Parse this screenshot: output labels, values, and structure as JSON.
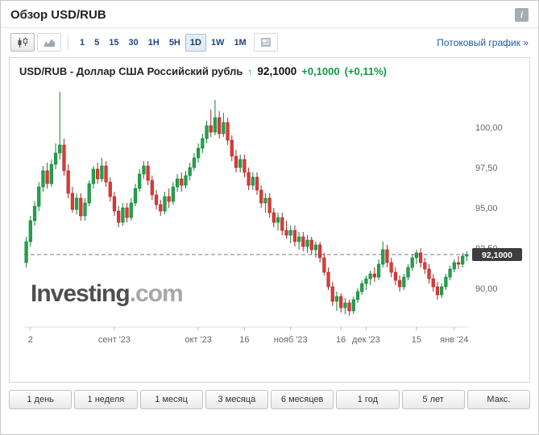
{
  "header": {
    "title": "Обзор USD/RUB",
    "info_icon": "i"
  },
  "toolbar": {
    "chart_types": [
      "candlestick-chart",
      "area-chart"
    ],
    "intervals": [
      "1",
      "5",
      "15",
      "30",
      "1H",
      "5H",
      "1D",
      "1W",
      "1M"
    ],
    "selected_interval": "1D",
    "news_icon": "news",
    "streaming_link": "Потоковый график »"
  },
  "quote": {
    "instrument": "USD/RUB - Доллар США Российский рубль",
    "arrow": "↑",
    "last": "92,1000",
    "change": "+0,1000",
    "change_pct": "(+0,11%)",
    "up_color": "#0e9a43"
  },
  "watermark": {
    "bold": "Investing",
    "light": ".com"
  },
  "ranges": [
    "1 день",
    "1 неделя",
    "1 месяц",
    "3 месяца",
    "6 месяцев",
    "1 год",
    "5 лет",
    "Макс."
  ],
  "chart_data": {
    "type": "candlestick",
    "pair": "USD/RUB",
    "timeframe": "1D",
    "ylim": [
      87.6,
      102.6
    ],
    "y_ticks": [
      {
        "value": 100.0,
        "label": "100,00"
      },
      {
        "value": 97.5,
        "label": "97,50"
      },
      {
        "value": 95.0,
        "label": "95,00"
      },
      {
        "value": 92.5,
        "label": "92,50"
      },
      {
        "value": 90.0,
        "label": "90,00"
      }
    ],
    "price_line": {
      "value": 92.1,
      "label": "92,1000"
    },
    "x_labels": [
      {
        "index": 1,
        "label": "2"
      },
      {
        "index": 21,
        "label": "сент '23"
      },
      {
        "index": 41,
        "label": "окт '23"
      },
      {
        "index": 52,
        "label": "16"
      },
      {
        "index": 63,
        "label": "нояб '23"
      },
      {
        "index": 75,
        "label": "16"
      },
      {
        "index": 81,
        "label": "дек '23"
      },
      {
        "index": 93,
        "label": "15"
      },
      {
        "index": 102,
        "label": "янв '24"
      }
    ],
    "colors": {
      "up": "#23a24d",
      "up_border": "#15803a",
      "down": "#dd3b34",
      "down_border": "#a8292a"
    },
    "candles": [
      [
        91.6,
        93.2,
        91.3,
        92.9
      ],
      [
        92.9,
        94.5,
        92.6,
        94.2
      ],
      [
        94.2,
        95.4,
        93.9,
        95.1
      ],
      [
        95.1,
        96.6,
        94.8,
        96.3
      ],
      [
        96.3,
        97.6,
        96.0,
        97.3
      ],
      [
        97.3,
        97.8,
        96.2,
        96.5
      ],
      [
        96.5,
        98.0,
        96.3,
        97.7
      ],
      [
        97.7,
        99.0,
        97.4,
        98.4
      ],
      [
        98.4,
        102.2,
        98.0,
        98.9
      ],
      [
        98.9,
        99.3,
        97.0,
        97.3
      ],
      [
        97.3,
        97.7,
        95.6,
        95.9
      ],
      [
        95.9,
        96.3,
        94.7,
        94.9
      ],
      [
        94.9,
        95.9,
        94.6,
        95.6
      ],
      [
        95.6,
        95.9,
        94.2,
        94.5
      ],
      [
        94.5,
        95.6,
        94.2,
        95.3
      ],
      [
        95.3,
        96.7,
        95.1,
        96.5
      ],
      [
        96.5,
        97.6,
        96.2,
        97.4
      ],
      [
        97.4,
        97.8,
        96.5,
        96.8
      ],
      [
        96.8,
        98.1,
        96.6,
        97.6
      ],
      [
        97.6,
        97.9,
        96.3,
        96.6
      ],
      [
        96.6,
        96.9,
        95.4,
        95.7
      ],
      [
        95.7,
        96.0,
        94.5,
        94.8
      ],
      [
        94.8,
        95.1,
        93.8,
        94.1
      ],
      [
        94.1,
        95.3,
        93.9,
        95.0
      ],
      [
        95.0,
        95.3,
        94.1,
        94.4
      ],
      [
        94.4,
        95.6,
        94.2,
        95.3
      ],
      [
        95.3,
        96.5,
        95.1,
        96.2
      ],
      [
        96.2,
        97.4,
        96.0,
        97.1
      ],
      [
        97.1,
        97.9,
        96.8,
        97.6
      ],
      [
        97.6,
        97.9,
        96.4,
        96.7
      ],
      [
        96.7,
        97.0,
        95.5,
        95.8
      ],
      [
        95.8,
        96.1,
        94.9,
        95.2
      ],
      [
        95.2,
        95.5,
        94.5,
        94.8
      ],
      [
        94.8,
        96.0,
        94.6,
        95.7
      ],
      [
        95.7,
        96.2,
        95.0,
        95.4
      ],
      [
        95.4,
        96.6,
        95.2,
        96.3
      ],
      [
        96.3,
        97.1,
        96.0,
        96.8
      ],
      [
        96.8,
        97.2,
        96.0,
        96.4
      ],
      [
        96.4,
        97.3,
        96.2,
        97.0
      ],
      [
        97.0,
        97.8,
        96.7,
        97.5
      ],
      [
        97.5,
        98.4,
        97.3,
        98.1
      ],
      [
        98.1,
        99.0,
        97.8,
        98.7
      ],
      [
        98.7,
        99.6,
        98.4,
        99.3
      ],
      [
        99.3,
        100.4,
        99.0,
        100.1
      ],
      [
        100.1,
        101.1,
        99.4,
        99.7
      ],
      [
        99.7,
        101.7,
        99.5,
        100.6
      ],
      [
        100.6,
        101.0,
        99.3,
        99.6
      ],
      [
        99.6,
        100.9,
        99.4,
        100.3
      ],
      [
        100.3,
        100.6,
        98.9,
        99.2
      ],
      [
        99.2,
        99.5,
        97.9,
        98.2
      ],
      [
        98.2,
        98.6,
        97.2,
        97.5
      ],
      [
        97.5,
        98.3,
        97.2,
        98.0
      ],
      [
        98.0,
        98.3,
        96.9,
        97.2
      ],
      [
        97.2,
        97.5,
        96.1,
        96.4
      ],
      [
        96.4,
        97.2,
        96.1,
        96.9
      ],
      [
        96.9,
        97.2,
        95.8,
        96.1
      ],
      [
        96.1,
        96.4,
        95.0,
        95.3
      ],
      [
        95.3,
        95.9,
        94.7,
        95.6
      ],
      [
        95.6,
        95.9,
        94.4,
        94.7
      ],
      [
        94.7,
        95.0,
        93.8,
        94.1
      ],
      [
        94.1,
        94.7,
        93.6,
        94.4
      ],
      [
        94.4,
        94.7,
        93.3,
        93.6
      ],
      [
        93.6,
        94.2,
        93.1,
        93.3
      ],
      [
        93.3,
        93.9,
        92.8,
        93.6
      ],
      [
        93.6,
        93.9,
        92.6,
        92.9
      ],
      [
        92.9,
        93.5,
        92.4,
        93.2
      ],
      [
        93.2,
        93.5,
        92.3,
        92.6
      ],
      [
        92.6,
        93.3,
        92.2,
        93.0
      ],
      [
        93.0,
        93.2,
        92.1,
        92.4
      ],
      [
        92.4,
        92.9,
        91.9,
        92.7
      ],
      [
        92.7,
        92.9,
        91.6,
        91.9
      ],
      [
        91.9,
        92.2,
        90.8,
        91.0
      ],
      [
        91.0,
        91.3,
        89.9,
        90.1
      ],
      [
        90.1,
        90.4,
        88.9,
        89.2
      ],
      [
        89.2,
        89.8,
        88.6,
        89.5
      ],
      [
        89.5,
        89.7,
        88.5,
        88.8
      ],
      [
        88.8,
        89.4,
        88.4,
        89.1
      ],
      [
        89.1,
        89.3,
        88.3,
        88.6
      ],
      [
        88.6,
        89.5,
        88.4,
        89.3
      ],
      [
        89.3,
        90.0,
        89.1,
        89.8
      ],
      [
        89.8,
        90.5,
        89.6,
        90.3
      ],
      [
        90.3,
        90.8,
        89.9,
        90.6
      ],
      [
        90.6,
        91.1,
        90.2,
        90.9
      ],
      [
        90.9,
        91.3,
        90.4,
        90.7
      ],
      [
        90.7,
        91.8,
        90.5,
        91.5
      ],
      [
        91.5,
        92.9,
        91.3,
        92.4
      ],
      [
        92.4,
        92.7,
        91.3,
        91.6
      ],
      [
        91.6,
        91.9,
        90.7,
        91.0
      ],
      [
        91.0,
        91.3,
        90.2,
        90.5
      ],
      [
        90.5,
        90.8,
        89.8,
        90.1
      ],
      [
        90.1,
        90.9,
        89.9,
        90.7
      ],
      [
        90.7,
        91.5,
        90.5,
        91.3
      ],
      [
        91.3,
        92.1,
        91.1,
        91.9
      ],
      [
        91.9,
        92.4,
        91.5,
        92.2
      ],
      [
        92.2,
        92.5,
        91.3,
        91.6
      ],
      [
        91.6,
        91.9,
        90.9,
        91.2
      ],
      [
        91.2,
        91.5,
        90.3,
        90.6
      ],
      [
        90.6,
        90.9,
        89.8,
        90.1
      ],
      [
        90.1,
        90.4,
        89.3,
        89.6
      ],
      [
        89.6,
        90.3,
        89.4,
        90.1
      ],
      [
        90.1,
        90.9,
        89.9,
        90.7
      ],
      [
        90.7,
        91.4,
        90.5,
        91.2
      ],
      [
        91.2,
        91.8,
        91.0,
        91.6
      ],
      [
        91.6,
        92.0,
        91.2,
        91.5
      ],
      [
        91.5,
        92.2,
        91.3,
        92.0
      ],
      [
        92.0,
        92.3,
        91.7,
        92.1
      ]
    ]
  }
}
